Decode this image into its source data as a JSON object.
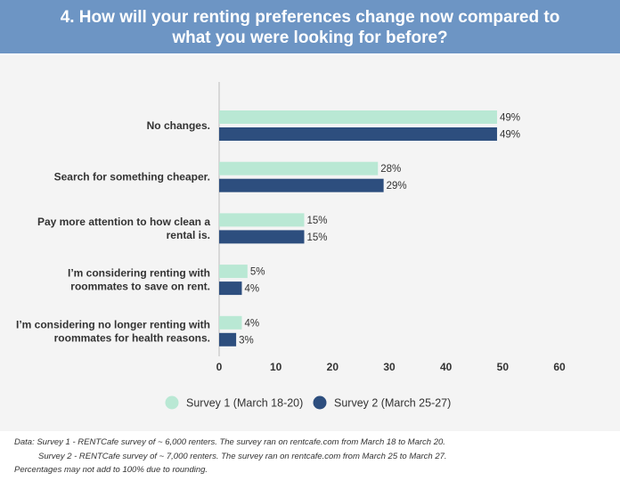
{
  "header": {
    "title": "4. How will your renting preferences change now compared to\nwhat  you were looking for before?"
  },
  "colors": {
    "header_bg": "#6d95c4",
    "series1": "#b9e8d4",
    "series2": "#2d4e7e",
    "panel_bg": "#f4f4f4"
  },
  "chart_data": {
    "type": "bar",
    "orientation": "horizontal",
    "categories": [
      [
        "No changes."
      ],
      [
        "Search for something cheaper."
      ],
      [
        "Pay more attention to how clean a",
        "rental is."
      ],
      [
        "I’m considering renting with",
        "roommates to save on rent."
      ],
      [
        "I’m considering no longer renting with",
        "roommates for health reasons."
      ]
    ],
    "series": [
      {
        "name": "Survey 1 (March 18-20)",
        "values": [
          49,
          28,
          15,
          5,
          4
        ],
        "labels": [
          "49%",
          "28%",
          "15%",
          "5%",
          "4%"
        ]
      },
      {
        "name": "Survey 2 (March 25-27)",
        "values": [
          49,
          29,
          15,
          4,
          3
        ],
        "labels": [
          "49%",
          "29%",
          "15%",
          "4%",
          "3%"
        ]
      }
    ],
    "xlim": [
      0,
      60
    ],
    "xticks": [
      "0",
      "10",
      "20",
      "30",
      "40",
      "50",
      "60"
    ],
    "grid": false,
    "legend_position": "bottom-center"
  },
  "footnotes": {
    "line1": "Data: Survey 1 - RENTCafe survey of ~ 6,000 renters. The survey ran on rentcafe.com from March 18 to March 20.",
    "line2": "Survey 2 - RENTCafe survey of ~ 7,000 renters. The survey ran on rentcafe.com from March 25 to March 27.",
    "line3": "Percentages may not add to 100% due to rounding."
  }
}
